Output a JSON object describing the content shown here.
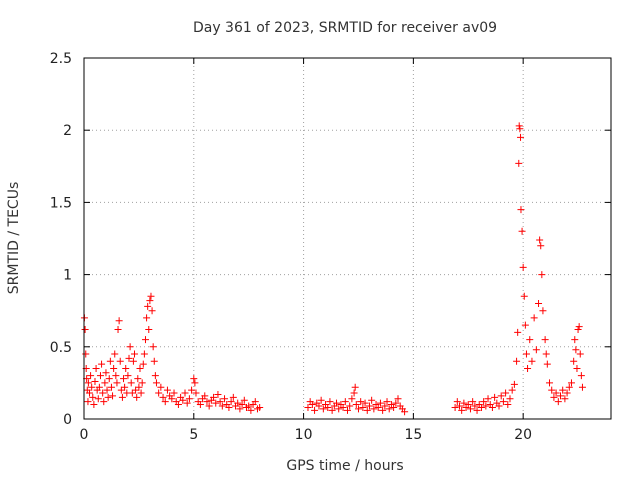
{
  "chart_data": {
    "type": "scatter",
    "title": "Day 361 of 2023, SRMTID for receiver av09",
    "xlabel": "GPS time / hours",
    "ylabel": "SRMTID / TECUs",
    "xlim": [
      0,
      24
    ],
    "ylim": [
      0,
      2.5
    ],
    "x_ticks": [
      0,
      5,
      10,
      15,
      20
    ],
    "x_tick_labels": [
      "0",
      "5",
      "10",
      "15",
      "20"
    ],
    "y_ticks": [
      0,
      0.5,
      1,
      1.5,
      2,
      2.5
    ],
    "y_tick_labels": [
      "0",
      "0.5",
      "1",
      "1.5",
      "2",
      "2.5"
    ],
    "grid": true,
    "marker": "plus",
    "series": [
      {
        "name": "SRMTID av09",
        "color": "#ff0000",
        "points": [
          [
            0.02,
            0.7
          ],
          [
            0.05,
            0.62
          ],
          [
            0.08,
            0.45
          ],
          [
            0.1,
            0.35
          ],
          [
            0.12,
            0.28
          ],
          [
            0.15,
            0.2
          ],
          [
            0.18,
            0.12
          ],
          [
            0.2,
            0.25
          ],
          [
            0.25,
            0.18
          ],
          [
            0.3,
            0.3
          ],
          [
            0.35,
            0.22
          ],
          [
            0.4,
            0.15
          ],
          [
            0.45,
            0.1
          ],
          [
            0.5,
            0.26
          ],
          [
            0.55,
            0.35
          ],
          [
            0.6,
            0.2
          ],
          [
            0.65,
            0.14
          ],
          [
            0.7,
            0.22
          ],
          [
            0.75,
            0.3
          ],
          [
            0.8,
            0.38
          ],
          [
            0.85,
            0.18
          ],
          [
            0.9,
            0.12
          ],
          [
            0.95,
            0.25
          ],
          [
            1.0,
            0.32
          ],
          [
            1.05,
            0.2
          ],
          [
            1.1,
            0.15
          ],
          [
            1.15,
            0.28
          ],
          [
            1.2,
            0.4
          ],
          [
            1.25,
            0.22
          ],
          [
            1.3,
            0.16
          ],
          [
            1.35,
            0.35
          ],
          [
            1.4,
            0.45
          ],
          [
            1.45,
            0.3
          ],
          [
            1.5,
            0.25
          ],
          [
            1.55,
            0.62
          ],
          [
            1.6,
            0.68
          ],
          [
            1.65,
            0.4
          ],
          [
            1.7,
            0.2
          ],
          [
            1.75,
            0.15
          ],
          [
            1.8,
            0.28
          ],
          [
            1.85,
            0.22
          ],
          [
            1.9,
            0.35
          ],
          [
            1.95,
            0.18
          ],
          [
            2.0,
            0.3
          ],
          [
            2.05,
            0.42
          ],
          [
            2.1,
            0.5
          ],
          [
            2.15,
            0.25
          ],
          [
            2.2,
            0.18
          ],
          [
            2.25,
            0.4
          ],
          [
            2.3,
            0.45
          ],
          [
            2.35,
            0.2
          ],
          [
            2.4,
            0.15
          ],
          [
            2.45,
            0.28
          ],
          [
            2.5,
            0.22
          ],
          [
            2.55,
            0.35
          ],
          [
            2.6,
            0.18
          ],
          [
            2.65,
            0.25
          ],
          [
            2.7,
            0.38
          ],
          [
            2.75,
            0.45
          ],
          [
            2.8,
            0.55
          ],
          [
            2.85,
            0.7
          ],
          [
            2.9,
            0.78
          ],
          [
            2.95,
            0.62
          ],
          [
            3.0,
            0.82
          ],
          [
            3.05,
            0.85
          ],
          [
            3.1,
            0.75
          ],
          [
            3.15,
            0.5
          ],
          [
            3.2,
            0.4
          ],
          [
            3.25,
            0.3
          ],
          [
            3.3,
            0.25
          ],
          [
            3.4,
            0.18
          ],
          [
            3.5,
            0.22
          ],
          [
            3.6,
            0.15
          ],
          [
            3.7,
            0.12
          ],
          [
            3.8,
            0.2
          ],
          [
            3.9,
            0.16
          ],
          [
            4.0,
            0.14
          ],
          [
            4.1,
            0.18
          ],
          [
            4.2,
            0.12
          ],
          [
            4.3,
            0.1
          ],
          [
            4.4,
            0.15
          ],
          [
            4.5,
            0.13
          ],
          [
            4.6,
            0.18
          ],
          [
            4.7,
            0.11
          ],
          [
            4.8,
            0.14
          ],
          [
            4.9,
            0.2
          ],
          [
            5.0,
            0.28
          ],
          [
            5.05,
            0.25
          ],
          [
            5.1,
            0.18
          ],
          [
            5.2,
            0.12
          ],
          [
            5.3,
            0.1
          ],
          [
            5.4,
            0.14
          ],
          [
            5.5,
            0.16
          ],
          [
            5.6,
            0.12
          ],
          [
            5.7,
            0.09
          ],
          [
            5.8,
            0.13
          ],
          [
            5.9,
            0.15
          ],
          [
            6.0,
            0.11
          ],
          [
            6.1,
            0.17
          ],
          [
            6.2,
            0.12
          ],
          [
            6.3,
            0.09
          ],
          [
            6.4,
            0.14
          ],
          [
            6.5,
            0.1
          ],
          [
            6.6,
            0.08
          ],
          [
            6.7,
            0.12
          ],
          [
            6.8,
            0.15
          ],
          [
            6.9,
            0.09
          ],
          [
            7.0,
            0.11
          ],
          [
            7.1,
            0.07
          ],
          [
            7.2,
            0.1
          ],
          [
            7.3,
            0.13
          ],
          [
            7.4,
            0.08
          ],
          [
            7.5,
            0.09
          ],
          [
            7.6,
            0.06
          ],
          [
            7.7,
            0.1
          ],
          [
            7.8,
            0.12
          ],
          [
            7.9,
            0.07
          ],
          [
            8.0,
            0.08
          ],
          [
            10.2,
            0.08
          ],
          [
            10.3,
            0.12
          ],
          [
            10.4,
            0.1
          ],
          [
            10.5,
            0.06
          ],
          [
            10.6,
            0.11
          ],
          [
            10.7,
            0.09
          ],
          [
            10.8,
            0.13
          ],
          [
            10.9,
            0.07
          ],
          [
            11.0,
            0.1
          ],
          [
            11.1,
            0.08
          ],
          [
            11.2,
            0.12
          ],
          [
            11.3,
            0.06
          ],
          [
            11.4,
            0.09
          ],
          [
            11.5,
            0.11
          ],
          [
            11.6,
            0.07
          ],
          [
            11.7,
            0.1
          ],
          [
            11.8,
            0.08
          ],
          [
            11.9,
            0.12
          ],
          [
            12.0,
            0.06
          ],
          [
            12.1,
            0.09
          ],
          [
            12.2,
            0.14
          ],
          [
            12.3,
            0.18
          ],
          [
            12.35,
            0.22
          ],
          [
            12.4,
            0.1
          ],
          [
            12.5,
            0.07
          ],
          [
            12.6,
            0.12
          ],
          [
            12.7,
            0.08
          ],
          [
            12.8,
            0.11
          ],
          [
            12.9,
            0.06
          ],
          [
            13.0,
            0.09
          ],
          [
            13.1,
            0.13
          ],
          [
            13.2,
            0.07
          ],
          [
            13.3,
            0.1
          ],
          [
            13.4,
            0.08
          ],
          [
            13.5,
            0.11
          ],
          [
            13.6,
            0.06
          ],
          [
            13.7,
            0.09
          ],
          [
            13.8,
            0.12
          ],
          [
            13.9,
            0.07
          ],
          [
            14.0,
            0.1
          ],
          [
            14.1,
            0.08
          ],
          [
            14.2,
            0.11
          ],
          [
            14.3,
            0.14
          ],
          [
            14.4,
            0.09
          ],
          [
            14.5,
            0.07
          ],
          [
            14.6,
            0.05
          ],
          [
            16.9,
            0.08
          ],
          [
            17.0,
            0.12
          ],
          [
            17.1,
            0.09
          ],
          [
            17.2,
            0.06
          ],
          [
            17.3,
            0.11
          ],
          [
            17.4,
            0.08
          ],
          [
            17.5,
            0.1
          ],
          [
            17.6,
            0.07
          ],
          [
            17.7,
            0.12
          ],
          [
            17.8,
            0.09
          ],
          [
            17.9,
            0.06
          ],
          [
            18.0,
            0.1
          ],
          [
            18.1,
            0.08
          ],
          [
            18.2,
            0.12
          ],
          [
            18.3,
            0.09
          ],
          [
            18.4,
            0.14
          ],
          [
            18.5,
            0.1
          ],
          [
            18.6,
            0.08
          ],
          [
            18.7,
            0.15
          ],
          [
            18.8,
            0.11
          ],
          [
            18.9,
            0.09
          ],
          [
            19.0,
            0.16
          ],
          [
            19.1,
            0.12
          ],
          [
            19.2,
            0.18
          ],
          [
            19.3,
            0.1
          ],
          [
            19.4,
            0.14
          ],
          [
            19.5,
            0.2
          ],
          [
            19.6,
            0.24
          ],
          [
            19.7,
            0.4
          ],
          [
            19.75,
            0.6
          ],
          [
            19.8,
            1.77
          ],
          [
            19.82,
            2.03
          ],
          [
            19.85,
            2.01
          ],
          [
            19.88,
            1.95
          ],
          [
            19.9,
            1.45
          ],
          [
            19.95,
            1.3
          ],
          [
            20.0,
            1.05
          ],
          [
            20.05,
            0.85
          ],
          [
            20.1,
            0.65
          ],
          [
            20.15,
            0.45
          ],
          [
            20.2,
            0.35
          ],
          [
            20.3,
            0.55
          ],
          [
            20.4,
            0.4
          ],
          [
            20.5,
            0.7
          ],
          [
            20.6,
            0.48
          ],
          [
            20.7,
            0.8
          ],
          [
            20.75,
            1.24
          ],
          [
            20.8,
            1.2
          ],
          [
            20.85,
            1.0
          ],
          [
            20.9,
            0.75
          ],
          [
            21.0,
            0.55
          ],
          [
            21.05,
            0.45
          ],
          [
            21.1,
            0.38
          ],
          [
            21.2,
            0.25
          ],
          [
            21.3,
            0.2
          ],
          [
            21.4,
            0.15
          ],
          [
            21.5,
            0.18
          ],
          [
            21.6,
            0.12
          ],
          [
            21.7,
            0.16
          ],
          [
            21.8,
            0.2
          ],
          [
            21.9,
            0.14
          ],
          [
            22.0,
            0.18
          ],
          [
            22.1,
            0.22
          ],
          [
            22.2,
            0.25
          ],
          [
            22.3,
            0.4
          ],
          [
            22.35,
            0.55
          ],
          [
            22.4,
            0.48
          ],
          [
            22.45,
            0.35
          ],
          [
            22.5,
            0.62
          ],
          [
            22.55,
            0.64
          ],
          [
            22.6,
            0.45
          ],
          [
            22.65,
            0.3
          ],
          [
            22.7,
            0.22
          ]
        ]
      }
    ]
  }
}
